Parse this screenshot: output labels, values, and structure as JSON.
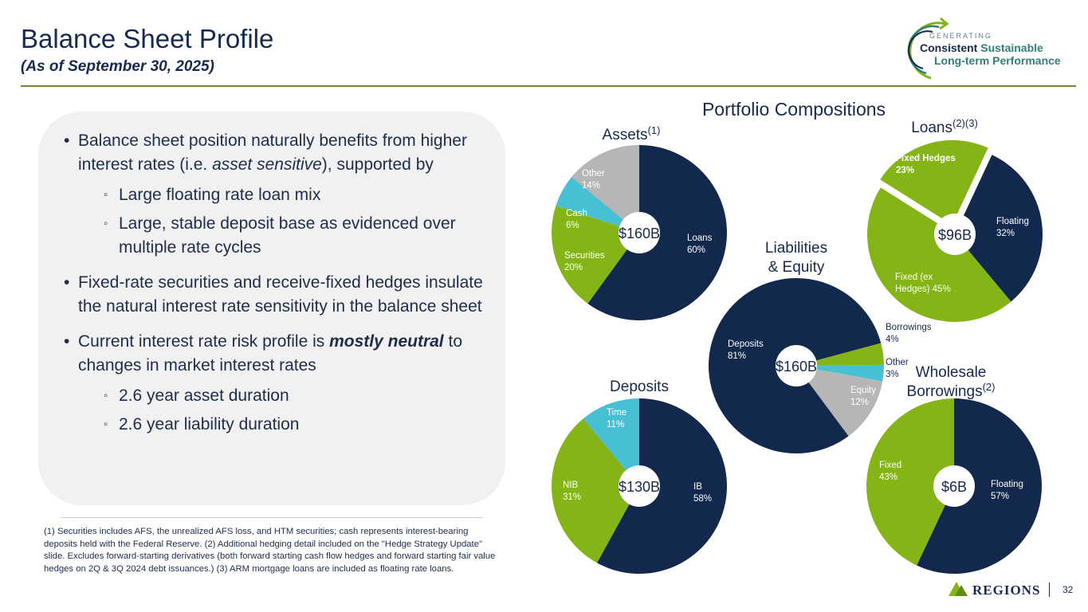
{
  "header": {
    "title": "Balance Sheet Profile",
    "subtitle": "(As of September 30, 2025)"
  },
  "logo": {
    "line_generating": "GENERATING",
    "line_consistent": "Consistent",
    "line_sustainable": "Sustainable",
    "line_longterm": "Long-term Performance"
  },
  "bullets": {
    "b1": {
      "text1": "Balance sheet position naturally benefits from higher interest rates (i.e. ",
      "italic": "asset sensitive",
      "text2": "), supported by"
    },
    "b1_sub1": "Large floating rate loan mix",
    "b1_sub2": "Large, stable deposit base as evidenced over multiple rate cycles",
    "b2": "Fixed-rate securities and receive-fixed hedges insulate the natural interest rate sensitivity in the balance sheet",
    "b3": {
      "text1": "Current interest rate risk profile is ",
      "bold_italic": "mostly neutral",
      "text2": " to changes in market interest rates"
    },
    "b3_sub1": "2.6 year asset duration",
    "b3_sub2": "2.6 year liability duration"
  },
  "footnote": "(1) Securities includes AFS, the unrealized AFS loss, and HTM securities; cash represents interest-bearing deposits held with the Federal Reserve. (2) Additional hedging detail included on the \"Hedge Strategy Update\" slide. Excludes forward-starting derivatives (both forward starting cash flow hedges and forward starting fair value hedges on 2Q & 3Q 2024 debt issuances.)  (3) ARM mortgage loans are included as floating rate loans.",
  "section_title": "Portfolio Compositions",
  "colors": {
    "navy": "#13284d",
    "green": "#84b416",
    "gray": "#b6b6b6",
    "teal": "#47c0d3"
  },
  "chart_data": [
    {
      "type": "pie",
      "title": "Assets",
      "title_sup": "(1)",
      "center_label": "$160B",
      "slices": [
        {
          "name": "Loans",
          "value": 60,
          "label": "60%",
          "color": "#13284d"
        },
        {
          "name": "Securities",
          "value": 20,
          "label": "20%",
          "color": "#84b416"
        },
        {
          "name": "Cash",
          "value": 6,
          "label": "6%",
          "color": "#47c0d3"
        },
        {
          "name": "Other",
          "value": 14,
          "label": "14%",
          "color": "#b6b6b6"
        }
      ]
    },
    {
      "type": "pie",
      "title": "Loans",
      "title_sup": "(2)(3)",
      "center_label": "$96B",
      "slices": [
        {
          "name": "Floating",
          "value": 32,
          "label": "32%",
          "color": "#13284d"
        },
        {
          "name": "Fixed (ex Hedges)",
          "value": 45,
          "label": "45%",
          "color": "#84b416"
        },
        {
          "name": "Fixed Hedges",
          "value": 23,
          "label": "23%",
          "color": "#84b416",
          "exploded": true
        }
      ]
    },
    {
      "type": "pie",
      "title": "Liabilities & Equity",
      "title_sup": "",
      "center_label": "$160B",
      "slices": [
        {
          "name": "Borrowings",
          "value": 4,
          "label": "4%",
          "color": "#84b416"
        },
        {
          "name": "Other",
          "value": 3,
          "label": "3%",
          "color": "#47c0d3"
        },
        {
          "name": "Equity",
          "value": 12,
          "label": "12%",
          "color": "#b6b6b6"
        },
        {
          "name": "Deposits",
          "value": 81,
          "label": "81%",
          "color": "#13284d"
        }
      ]
    },
    {
      "type": "pie",
      "title": "Deposits",
      "title_sup": "",
      "center_label": "$130B",
      "slices": [
        {
          "name": "IB",
          "value": 58,
          "label": "58%",
          "color": "#13284d"
        },
        {
          "name": "NIB",
          "value": 31,
          "label": "31%",
          "color": "#84b416"
        },
        {
          "name": "Time",
          "value": 11,
          "label": "11%",
          "color": "#47c0d3"
        }
      ]
    },
    {
      "type": "pie",
      "title": "Wholesale Borrowings",
      "title_sup": "(2)",
      "center_label": "$6B",
      "slices": [
        {
          "name": "Floating",
          "value": 57,
          "label": "57%",
          "color": "#13284d"
        },
        {
          "name": "Fixed",
          "value": 43,
          "label": "43%",
          "color": "#84b416"
        }
      ]
    }
  ],
  "brand": {
    "name": "REGIONS"
  },
  "page_number": "32"
}
